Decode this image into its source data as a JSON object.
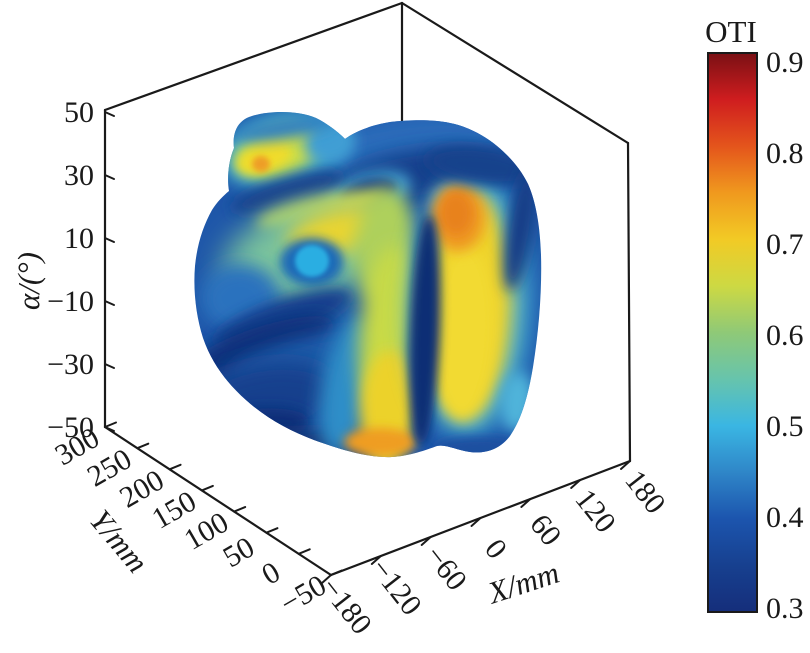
{
  "figure": {
    "background": "#ffffff",
    "axis_color": "#1a1a1a",
    "colorbar": {
      "title": "OTI",
      "tick_labels": [
        "0.9",
        "0.8",
        "0.7",
        "0.6",
        "0.5",
        "0.4",
        "0.3"
      ],
      "range_top": 0.9,
      "range_bottom": 0.3
    },
    "z_axis": {
      "label": "α/(°)",
      "tick_labels": [
        "50",
        "30",
        "10",
        "−10",
        "−30",
        "−50"
      ]
    },
    "y_axis": {
      "label": "Y/mm",
      "tick_labels": [
        "300",
        "250",
        "200",
        "150",
        "100",
        "50",
        "0",
        "−50"
      ]
    },
    "x_axis": {
      "label": "X/mm",
      "tick_labels": [
        "−180",
        "−120",
        "−60",
        "0",
        "60",
        "120",
        "180"
      ]
    }
  },
  "chart_data": {
    "type": "surface",
    "subtype": "3d-isosurface-volume-colored-by-scalar",
    "title": "",
    "colorbar_title": "OTI",
    "color_range": [
      0.3,
      0.9
    ],
    "colormap_name": "jet-like",
    "colormap_stops": [
      {
        "value": 0.3,
        "color": "#152e7b"
      },
      {
        "value": 0.35,
        "color": "#17408f"
      },
      {
        "value": 0.4,
        "color": "#1c55ae"
      },
      {
        "value": 0.45,
        "color": "#2f86c8"
      },
      {
        "value": 0.5,
        "color": "#3ab6e3"
      },
      {
        "value": 0.55,
        "color": "#67c4ac"
      },
      {
        "value": 0.6,
        "color": "#8fc977"
      },
      {
        "value": 0.65,
        "color": "#cdd943"
      },
      {
        "value": 0.7,
        "color": "#f2ca25"
      },
      {
        "value": 0.75,
        "color": "#f0991e"
      },
      {
        "value": 0.8,
        "color": "#e4551c"
      },
      {
        "value": 0.85,
        "color": "#cf1d1f"
      },
      {
        "value": 0.9,
        "color": "#7a1014"
      }
    ],
    "x": {
      "label": "X/mm",
      "range": [
        -180,
        180
      ],
      "ticks": [
        -180,
        -120,
        -60,
        0,
        60,
        120,
        180
      ]
    },
    "y": {
      "label": "Y/mm",
      "range": [
        -50,
        300
      ],
      "ticks": [
        300,
        250,
        200,
        150,
        100,
        50,
        0,
        -50
      ]
    },
    "z": {
      "label": "α/(°)",
      "range": [
        -50,
        50
      ],
      "ticks": [
        50,
        30,
        10,
        -10,
        -30,
        -50
      ]
    },
    "grid": false,
    "legend": "colorbar right",
    "surface_features": [
      {
        "region": "front-right lobe upper hotspot",
        "approx_OTI": 0.75
      },
      {
        "region": "front-right lobe vertical yellow band",
        "approx_OTI": 0.68
      },
      {
        "region": "top-left small lobe yellow/orange patch",
        "approx_OTI": 0.7
      },
      {
        "region": "left face green area with yellow patch",
        "approx_OTI": 0.62
      },
      {
        "region": "left face light-blue circular spot",
        "approx_OTI": 0.5
      },
      {
        "region": "bottom-center orange streak",
        "approx_OTI": 0.72
      },
      {
        "region": "dark blue creases and bottom-left mass",
        "approx_OTI": 0.35
      },
      {
        "region": "overall blue body",
        "approx_OTI": 0.42
      }
    ]
  }
}
